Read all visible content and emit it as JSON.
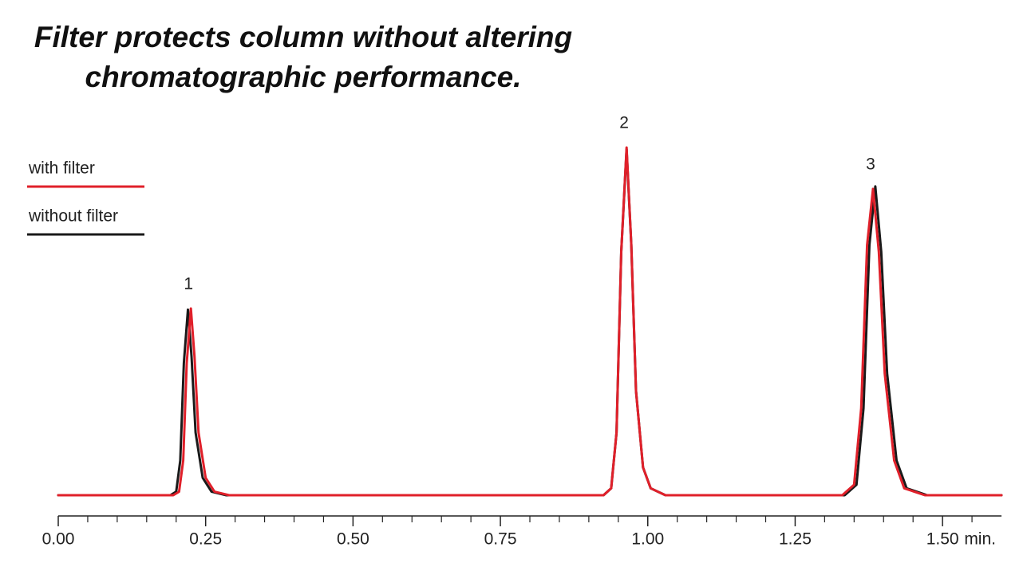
{
  "chart_data": {
    "type": "line",
    "title": "Filter protects column without altering chromatographic performance.",
    "xlabel": "min.",
    "xlim": [
      0,
      1.6
    ],
    "ylim": [
      0,
      100
    ],
    "xticks": [
      {
        "value": 0,
        "label": "0.00"
      },
      {
        "value": 0.25,
        "label": "0.25"
      },
      {
        "value": 0.5,
        "label": "0.50"
      },
      {
        "value": 0.75,
        "label": "0.75"
      },
      {
        "value": 1,
        "label": "1.00"
      },
      {
        "value": 1.25,
        "label": "1.25"
      },
      {
        "value": 1.5,
        "label": "1.50"
      }
    ],
    "xminor_ticks": [
      0.05,
      0.1,
      0.15,
      0.2,
      0.3,
      0.35,
      0.4,
      0.45,
      0.55,
      0.6,
      0.65,
      0.7,
      0.8,
      0.85,
      0.9,
      0.95,
      1.05,
      1.1,
      1.15,
      1.2,
      1.3,
      1.35,
      1.4,
      1.45,
      1.55
    ],
    "annotations": [
      {
        "text": "1",
        "x": 0.225
      },
      {
        "text": "2",
        "x": 0.964
      },
      {
        "text": "3",
        "x": 1.382
      }
    ],
    "series": [
      {
        "name": "with filter",
        "color": "#e0202a",
        "x": [
          0,
          0.195,
          0.205,
          0.212,
          0.218,
          0.225,
          0.231,
          0.238,
          0.25,
          0.265,
          0.29,
          0.925,
          0.938,
          0.947,
          0.955,
          0.964,
          0.972,
          0.98,
          0.992,
          1.005,
          1.03,
          1.33,
          1.35,
          1.362,
          1.372,
          1.382,
          1.392,
          1.402,
          1.418,
          1.435,
          1.47,
          1.6
        ],
        "values": [
          0,
          0,
          1,
          10,
          38,
          53.7,
          40,
          18,
          5,
          1,
          0,
          0,
          2,
          18,
          70,
          100,
          72,
          30,
          8,
          2,
          0,
          0,
          3,
          25,
          72,
          88.1,
          70,
          35,
          10,
          2,
          0,
          0
        ]
      },
      {
        "name": "without filter",
        "color": "#1a1a1a",
        "x": [
          0,
          0.19,
          0.2,
          0.207,
          0.213,
          0.22,
          0.226,
          0.233,
          0.245,
          0.26,
          0.285,
          0.925,
          0.938,
          0.947,
          0.955,
          0.964,
          0.972,
          0.98,
          0.992,
          1.005,
          1.03,
          1.334,
          1.354,
          1.366,
          1.376,
          1.386,
          1.396,
          1.406,
          1.422,
          1.439,
          1.474,
          1.6
        ],
        "values": [
          0,
          0,
          1,
          10,
          38,
          53.4,
          40,
          18,
          5,
          1,
          0,
          0,
          2,
          18,
          70,
          99.5,
          72,
          30,
          8,
          2,
          0,
          0,
          3,
          25,
          72,
          88.8,
          70,
          35,
          10,
          2,
          0,
          0
        ]
      }
    ]
  }
}
